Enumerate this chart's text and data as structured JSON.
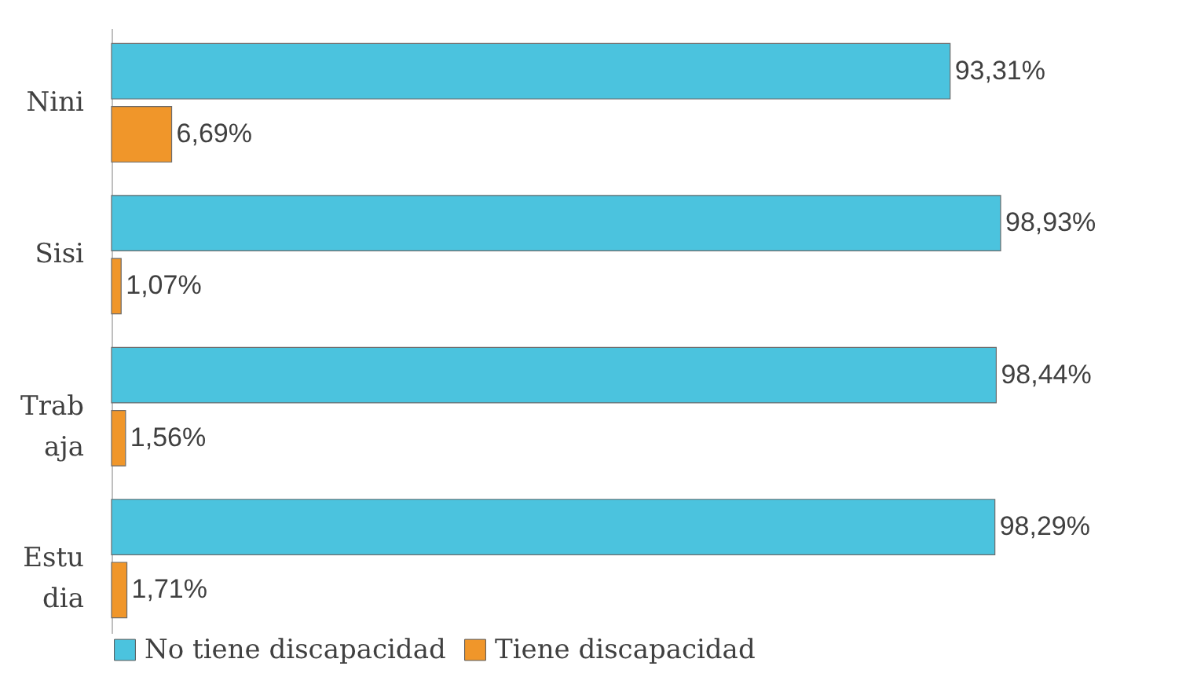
{
  "chart_data": {
    "type": "bar",
    "orientation": "horizontal",
    "categories": [
      "Nini",
      "Sisi",
      "Trabaja",
      "Estudia"
    ],
    "legend": "bottom",
    "series": [
      {
        "name": "No tiene discapacidad",
        "color": "#4bc3de",
        "values": [
          93.31,
          98.93,
          98.44,
          98.29
        ],
        "value_labels": [
          "93,31%",
          "98,93%",
          "98,44%",
          "98,29%"
        ]
      },
      {
        "name": "Tiene discapacidad",
        "color": "#f0962a",
        "values": [
          6.69,
          1.07,
          1.56,
          1.71
        ],
        "value_labels": [
          "6,69%",
          "1,07%",
          "1,56%",
          "1,71%"
        ]
      }
    ]
  }
}
